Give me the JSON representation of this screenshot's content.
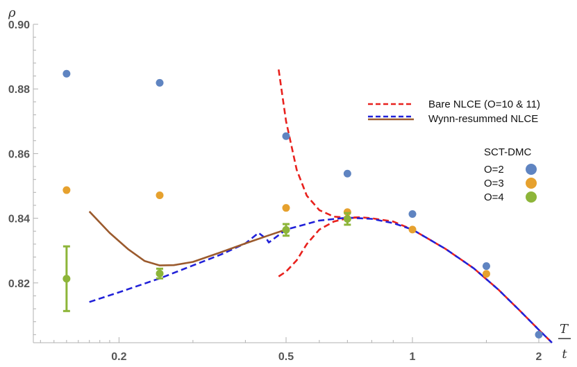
{
  "chart_data": {
    "type": "scatter",
    "x_scale": "log",
    "xlim": [
      0.125,
      2.15
    ],
    "ylim": [
      0.8015,
      0.9
    ],
    "ylabel": "ρ",
    "xlabel_num": "T",
    "xlabel_den": "t",
    "x_ticks": [
      {
        "value": 0.2,
        "label": "0.2"
      },
      {
        "value": 0.5,
        "label": "0.5"
      },
      {
        "value": 1,
        "label": "1"
      },
      {
        "value": 2,
        "label": "2"
      }
    ],
    "y_ticks": [
      {
        "value": 0.82,
        "label": "0.82"
      },
      {
        "value": 0.84,
        "label": "0.84"
      },
      {
        "value": 0.86,
        "label": "0.86"
      },
      {
        "value": 0.88,
        "label": "0.88"
      },
      {
        "value": 0.9,
        "label": "0.90"
      }
    ],
    "line_series": [
      {
        "name": "Bare NLCE (O=10 & 11)",
        "color": "#e8211d",
        "style": "dashed",
        "x": [
          0.48,
          0.5,
          0.53,
          0.56,
          0.6,
          0.65,
          0.7,
          0.75,
          0.8,
          0.9,
          1.0,
          1.2,
          1.4,
          1.6,
          1.8,
          2.0,
          2.15
        ],
        "y": [
          0.886,
          0.87,
          0.855,
          0.847,
          0.8425,
          0.8405,
          0.8402,
          0.8403,
          0.84,
          0.839,
          0.8365,
          0.8305,
          0.8245,
          0.818,
          0.8115,
          0.8055,
          0.8015
        ]
      },
      {
        "name": "Bare NLCE (O=10 & 11)",
        "color": "#e8211d",
        "style": "dashed",
        "x": [
          0.48,
          0.5,
          0.53,
          0.56,
          0.6,
          0.65,
          0.7,
          0.75
        ],
        "y": [
          0.822,
          0.8235,
          0.827,
          0.832,
          0.8365,
          0.839,
          0.84,
          0.8403
        ]
      },
      {
        "name": "Wynn-resummed NLCE",
        "color": "#2121d8",
        "style": "dashed",
        "x": [
          0.17,
          0.2,
          0.25,
          0.3,
          0.35,
          0.4,
          0.43,
          0.45,
          0.455,
          0.5,
          0.6,
          0.7,
          0.8,
          0.9,
          1.0,
          1.2,
          1.4,
          1.6,
          1.8,
          2.0,
          2.15
        ],
        "y": [
          0.8141,
          0.8171,
          0.8214,
          0.8254,
          0.8288,
          0.8322,
          0.8355,
          0.8335,
          0.8325,
          0.8365,
          0.8393,
          0.8402,
          0.8398,
          0.8385,
          0.8365,
          0.8305,
          0.8245,
          0.818,
          0.8115,
          0.8055,
          0.8015
        ]
      },
      {
        "name": "Wynn-resummed NLCE",
        "color": "#9b5a2d",
        "style": "solid",
        "x": [
          0.17,
          0.19,
          0.21,
          0.23,
          0.25,
          0.27,
          0.3,
          0.35,
          0.4,
          0.45,
          0.5
        ],
        "y": [
          0.8421,
          0.8355,
          0.8305,
          0.8268,
          0.8254,
          0.8255,
          0.8265,
          0.8295,
          0.8322,
          0.8345,
          0.8365
        ]
      }
    ],
    "point_series": [
      {
        "name": "O=2",
        "color": "#5f84c1",
        "x": [
          0.15,
          0.25,
          0.5,
          0.7,
          1.0,
          1.5,
          2.0
        ],
        "y": [
          0.8847,
          0.8819,
          0.8654,
          0.8538,
          0.8413,
          0.8252,
          0.804
        ],
        "err": [
          0,
          0,
          0,
          0,
          0,
          0,
          0
        ]
      },
      {
        "name": "O=3",
        "color": "#e6a12e",
        "x": [
          0.15,
          0.25,
          0.5,
          0.7,
          1.0,
          1.5
        ],
        "y": [
          0.8487,
          0.8471,
          0.8432,
          0.8419,
          0.8365,
          0.8228
        ],
        "err": [
          0,
          0,
          0,
          0,
          0,
          0
        ]
      },
      {
        "name": "O=4",
        "color": "#8db539",
        "x": [
          0.15,
          0.25,
          0.5,
          0.7
        ],
        "y": [
          0.8213,
          0.8229,
          0.8364,
          0.8398
        ],
        "err": [
          0.01,
          0.0015,
          0.0018,
          0.0018
        ]
      }
    ],
    "legend": {
      "lines_position": "top-right",
      "lines": [
        {
          "label": "Bare NLCE (O=10 & 11)",
          "color": "#e8211d",
          "style": "dashed"
        },
        {
          "label": "Wynn-resummed NLCE",
          "colors": [
            "#2121d8",
            "#9b5a2d"
          ],
          "style": "mixed"
        }
      ],
      "points_title": "SCT-DMC",
      "points": [
        {
          "label": "O=2",
          "color": "#5f84c1"
        },
        {
          "label": "O=3",
          "color": "#e6a12e"
        },
        {
          "label": "O=4",
          "color": "#8db539"
        }
      ]
    }
  }
}
